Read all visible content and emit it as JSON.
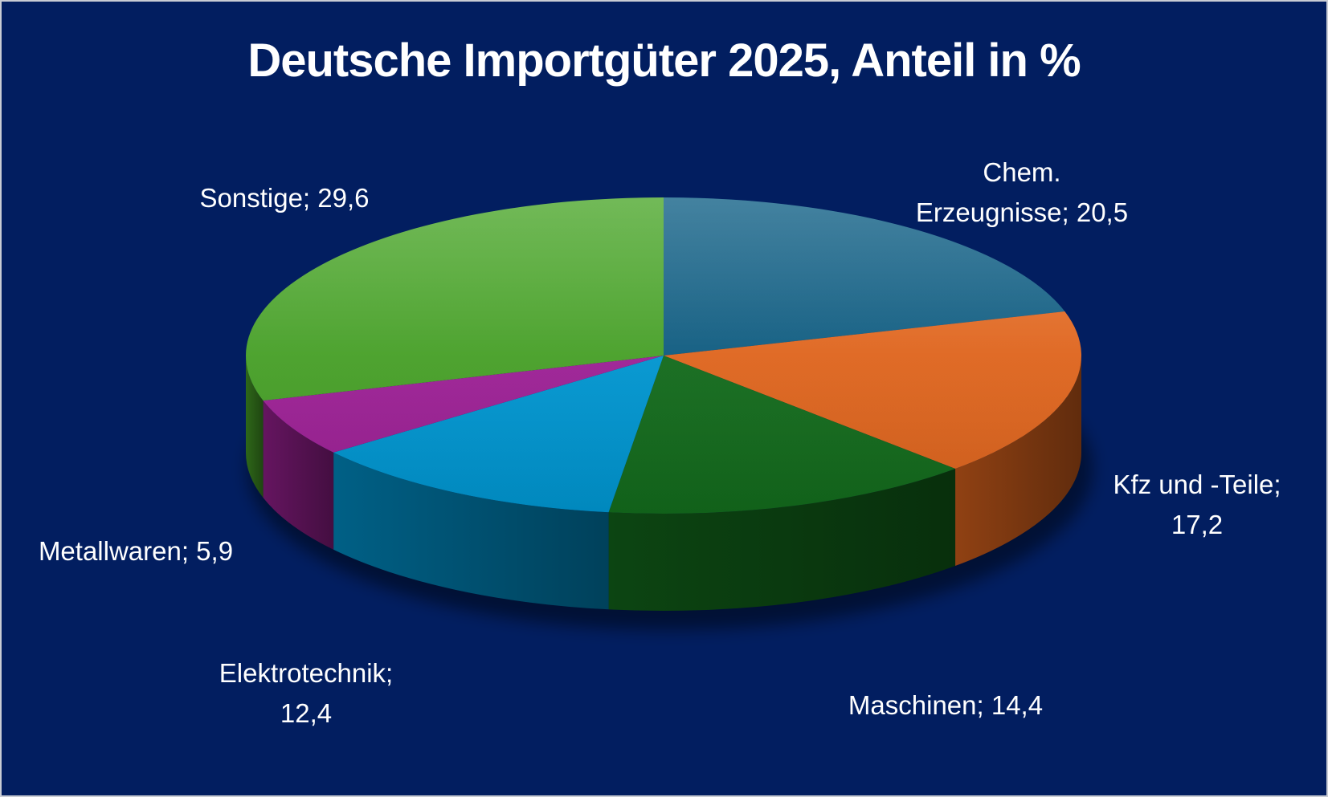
{
  "chart_data": {
    "type": "pie",
    "title": "Deutsche Importgüter 2025, Anteil in %",
    "unit": "%",
    "slices": [
      {
        "name": "Chem. Erzeugnisse",
        "value": 20.5,
        "label_lines": [
          "Chem.",
          "Erzeugnisse; 20,5"
        ],
        "color": "#0f5f85"
      },
      {
        "name": "Kfz und -Teile",
        "value": 17.2,
        "label_lines": [
          "Kfz und -Teile;",
          "17,2"
        ],
        "color": "#e8691f"
      },
      {
        "name": "Maschinen",
        "value": 14.4,
        "label_lines": [
          "Maschinen; 14,4"
        ],
        "color": "#146f1d"
      },
      {
        "name": "Elektrotechnik",
        "value": 12.4,
        "label_lines": [
          "Elektrotechnik;",
          "12,4"
        ],
        "color": "#009bd8"
      },
      {
        "name": "Metallwaren",
        "value": 5.9,
        "label_lines": [
          "Metallwaren; 5,9"
        ],
        "color": "#a3229b"
      },
      {
        "name": "Sonstige",
        "value": 29.6,
        "label_lines": [
          "Sonstige; 29,6"
        ],
        "color": "#4aa629"
      }
    ],
    "start_angle_deg": -90,
    "direction": "clockwise",
    "style": "3d",
    "background": "#021e60",
    "label_color": "#ffffff"
  }
}
